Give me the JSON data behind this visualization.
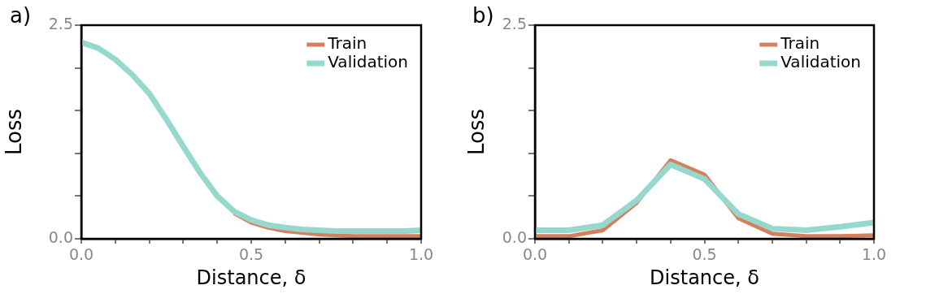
{
  "chart_data": [
    {
      "type": "line",
      "title": "a)",
      "xlabel": "Distance, δ",
      "ylabel": "Loss",
      "legend": "top right",
      "marker": "none",
      "xlim": [
        0,
        1
      ],
      "ylim": [
        0,
        2.5
      ],
      "xticks": [
        {
          "value": 0,
          "label": "0.0"
        },
        {
          "value": 0.1,
          "label": null
        },
        {
          "value": 0.2,
          "label": null
        },
        {
          "value": 0.3,
          "label": null
        },
        {
          "value": 0.4,
          "label": null
        },
        {
          "value": 0.5,
          "label": "0.5"
        },
        {
          "value": 0.6,
          "label": null
        },
        {
          "value": 0.7,
          "label": null
        },
        {
          "value": 0.8,
          "label": null
        },
        {
          "value": 0.9,
          "label": null
        },
        {
          "value": 1,
          "label": "1.0"
        }
      ],
      "yticks": [
        {
          "value": 0,
          "label": "0.0"
        },
        {
          "value": 0.5,
          "label": null
        },
        {
          "value": 1,
          "label": null
        },
        {
          "value": 1.5,
          "label": null
        },
        {
          "value": 2,
          "label": null
        },
        {
          "value": 2.5,
          "label": "2.5"
        }
      ],
      "x": [
        0,
        0.05,
        0.1,
        0.15,
        0.2,
        0.25,
        0.3,
        0.35,
        0.4,
        0.45,
        0.5,
        0.55,
        0.6,
        0.65,
        0.7,
        0.75,
        0.8,
        0.85,
        0.9,
        0.95,
        1
      ],
      "series": [
        {
          "name": "Train",
          "color": "#d4805e",
          "values": [
            null,
            null,
            null,
            null,
            null,
            null,
            null,
            null,
            null,
            0.3,
            0.19,
            0.13,
            0.09,
            0.07,
            0.05,
            0.04,
            0.03,
            0.03,
            0.03,
            0.03,
            0.03
          ]
        },
        {
          "name": "Validation",
          "color": "#96d8cc",
          "values": [
            2.3,
            2.23,
            2.1,
            1.92,
            1.7,
            1.4,
            1.08,
            0.77,
            0.5,
            0.32,
            0.22,
            0.16,
            0.13,
            0.11,
            0.1,
            0.09,
            0.09,
            0.09,
            0.09,
            0.09,
            0.1
          ]
        }
      ]
    },
    {
      "type": "line",
      "title": "b)",
      "xlabel": "Distance, δ",
      "ylabel": "Loss",
      "legend": "top right",
      "marker": "none",
      "xlim": [
        0,
        1
      ],
      "ylim": [
        0,
        2.5
      ],
      "xticks": [
        {
          "value": 0,
          "label": "0.0"
        },
        {
          "value": 0.1,
          "label": null
        },
        {
          "value": 0.2,
          "label": null
        },
        {
          "value": 0.3,
          "label": null
        },
        {
          "value": 0.4,
          "label": null
        },
        {
          "value": 0.5,
          "label": "0.5"
        },
        {
          "value": 0.6,
          "label": null
        },
        {
          "value": 0.7,
          "label": null
        },
        {
          "value": 0.8,
          "label": null
        },
        {
          "value": 0.9,
          "label": null
        },
        {
          "value": 1,
          "label": "1.0"
        }
      ],
      "yticks": [
        {
          "value": 0,
          "label": "0.0"
        },
        {
          "value": 0.5,
          "label": null
        },
        {
          "value": 1,
          "label": null
        },
        {
          "value": 1.5,
          "label": null
        },
        {
          "value": 2,
          "label": null
        },
        {
          "value": 2.5,
          "label": "2.5"
        }
      ],
      "x": [
        0,
        0.1,
        0.2,
        0.3,
        0.4,
        0.5,
        0.6,
        0.7,
        0.8,
        0.9,
        1
      ],
      "series": [
        {
          "name": "Train",
          "color": "#d4805e",
          "values": [
            0.03,
            0.03,
            0.1,
            0.42,
            0.92,
            0.75,
            0.24,
            0.06,
            0.03,
            0.03,
            0.04
          ]
        },
        {
          "name": "Validation",
          "color": "#96d8cc",
          "values": [
            0.1,
            0.1,
            0.16,
            0.45,
            0.87,
            0.7,
            0.29,
            0.12,
            0.1,
            0.14,
            0.19
          ]
        }
      ]
    }
  ]
}
